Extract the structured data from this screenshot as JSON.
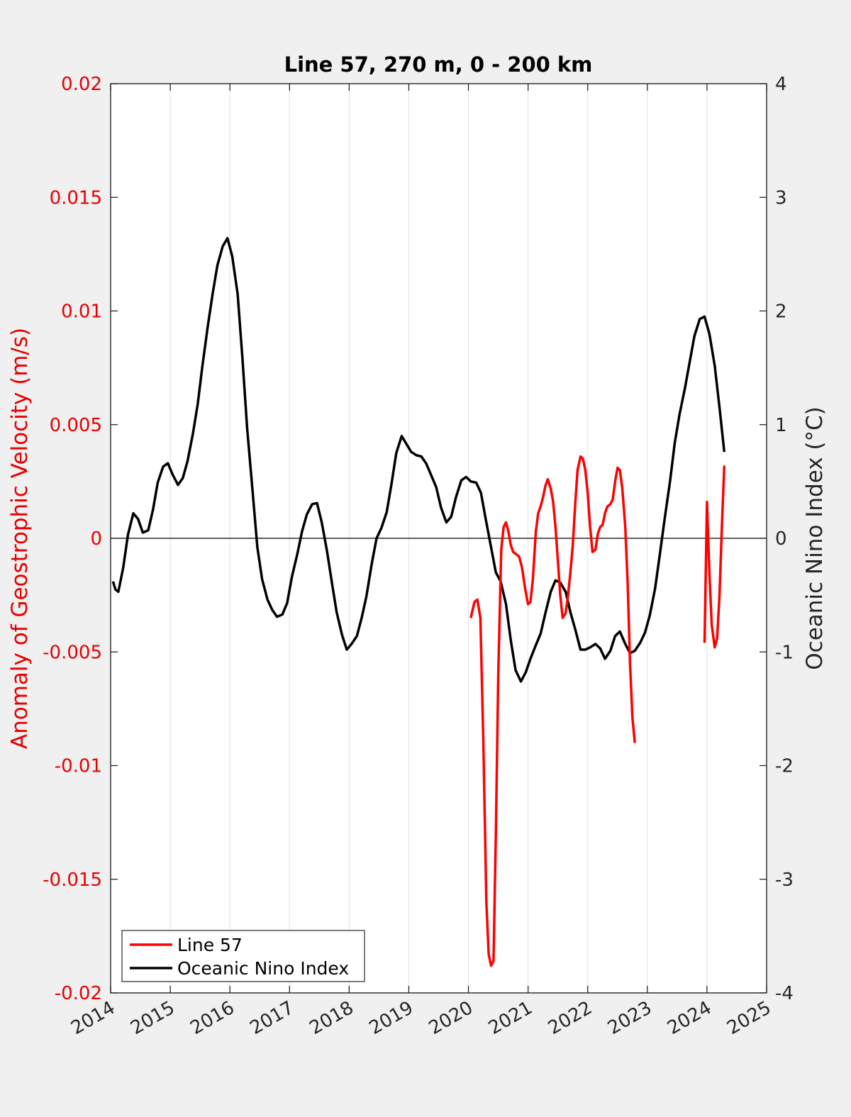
{
  "chart_data": {
    "type": "line",
    "title": "Line 57, 270 m, 0 - 200 km",
    "xlabel": "",
    "ylabel_left": "Anomaly of Geostrophic Velocity (m/s)",
    "ylabel_right": "Oceanic Nino Index (°C)",
    "xlim": [
      2014,
      2025
    ],
    "ylim_left": [
      -0.02,
      0.02
    ],
    "ylim_right": [
      -4,
      4
    ],
    "x_ticks": [
      "2014",
      "2015",
      "2016",
      "2017",
      "2018",
      "2019",
      "2020",
      "2021",
      "2022",
      "2023",
      "2024",
      "2025"
    ],
    "y_left_ticks": [
      "0.02",
      "0.015",
      "0.01",
      "0.005",
      "0",
      "-0.005",
      "-0.01",
      "-0.015",
      "-0.02"
    ],
    "y_right_ticks": [
      "4",
      "3",
      "2",
      "1",
      "0",
      "-1",
      "-2",
      "-3",
      "-4"
    ],
    "grid": "vertical",
    "zero_line": true,
    "legend_position": "bottom-left",
    "colors": {
      "left_axis": "#e80000",
      "line57": "#ff0000",
      "oni": "#000000",
      "background": "#f0f0f0",
      "plot_bg": "#ffffff",
      "grid": "#e3e3e3"
    },
    "series": [
      {
        "name": "Line 57",
        "axis": "left",
        "color": "#ff0000",
        "segments": [
          [
            [
              2020.04,
              -0.0035
            ],
            [
              2020.1,
              -0.0028
            ],
            [
              2020.15,
              -0.0027
            ],
            [
              2020.2,
              -0.0035
            ],
            [
              2020.25,
              -0.009
            ],
            [
              2020.3,
              -0.016
            ],
            [
              2020.34,
              -0.0183
            ],
            [
              2020.38,
              -0.0188
            ],
            [
              2020.42,
              -0.0186
            ],
            [
              2020.46,
              -0.013
            ],
            [
              2020.5,
              -0.006
            ],
            [
              2020.55,
              -0.0005
            ],
            [
              2020.59,
              0.0005
            ],
            [
              2020.63,
              0.0007
            ],
            [
              2020.67,
              0.0003
            ],
            [
              2020.71,
              -0.0003
            ],
            [
              2020.75,
              -0.0006
            ],
            [
              2020.8,
              -0.0007
            ],
            [
              2020.85,
              -0.0008
            ],
            [
              2020.9,
              -0.0013
            ],
            [
              2020.95,
              -0.0022
            ],
            [
              2021.0,
              -0.0029
            ],
            [
              2021.04,
              -0.0028
            ],
            [
              2021.08,
              -0.0018
            ],
            [
              2021.13,
              0.0003
            ],
            [
              2021.17,
              0.0011
            ],
            [
              2021.21,
              0.0014
            ],
            [
              2021.25,
              0.0018
            ],
            [
              2021.29,
              0.0023
            ],
            [
              2021.33,
              0.0026
            ],
            [
              2021.38,
              0.0022
            ],
            [
              2021.42,
              0.0016
            ],
            [
              2021.46,
              0.0005
            ],
            [
              2021.5,
              -0.001
            ],
            [
              2021.54,
              -0.0025
            ],
            [
              2021.58,
              -0.0035
            ],
            [
              2021.63,
              -0.0033
            ],
            [
              2021.67,
              -0.0025
            ],
            [
              2021.71,
              -0.0015
            ],
            [
              2021.75,
              -0.0003
            ],
            [
              2021.79,
              0.0015
            ],
            [
              2021.83,
              0.003
            ],
            [
              2021.88,
              0.0036
            ],
            [
              2021.92,
              0.0035
            ],
            [
              2021.96,
              0.003
            ],
            [
              2022.0,
              0.002
            ],
            [
              2022.04,
              0.0005
            ],
            [
              2022.08,
              -0.0006
            ],
            [
              2022.13,
              -0.0005
            ],
            [
              2022.17,
              0.0002
            ],
            [
              2022.21,
              0.0005
            ],
            [
              2022.25,
              0.0006
            ],
            [
              2022.29,
              0.0011
            ],
            [
              2022.33,
              0.0014
            ],
            [
              2022.38,
              0.0015
            ],
            [
              2022.42,
              0.0017
            ],
            [
              2022.46,
              0.0025
            ],
            [
              2022.5,
              0.0031
            ],
            [
              2022.54,
              0.003
            ],
            [
              2022.58,
              0.0022
            ],
            [
              2022.63,
              0.0005
            ],
            [
              2022.67,
              -0.002
            ],
            [
              2022.71,
              -0.0055
            ],
            [
              2022.75,
              -0.0079
            ],
            [
              2022.79,
              -0.009
            ]
          ],
          [
            [
              2023.96,
              -0.0046
            ],
            [
              2024.0,
              0.0016
            ],
            [
              2024.04,
              -0.0015
            ],
            [
              2024.08,
              -0.0038
            ],
            [
              2024.13,
              -0.0048
            ],
            [
              2024.17,
              -0.0044
            ],
            [
              2024.21,
              -0.0025
            ],
            [
              2024.25,
              0.0005
            ],
            [
              2024.29,
              0.0032
            ]
          ]
        ]
      },
      {
        "name": "Oceanic Nino Index",
        "axis": "right",
        "color": "#000000",
        "segments": [
          [
            [
              2014.04,
              -0.38
            ],
            [
              2014.08,
              -0.45
            ],
            [
              2014.13,
              -0.47
            ],
            [
              2014.21,
              -0.26
            ],
            [
              2014.29,
              0.03
            ],
            [
              2014.38,
              0.22
            ],
            [
              2014.46,
              0.17
            ],
            [
              2014.54,
              0.05
            ],
            [
              2014.63,
              0.07
            ],
            [
              2014.71,
              0.25
            ],
            [
              2014.79,
              0.49
            ],
            [
              2014.88,
              0.63
            ],
            [
              2014.96,
              0.66
            ],
            [
              2015.04,
              0.56
            ],
            [
              2015.13,
              0.47
            ],
            [
              2015.21,
              0.53
            ],
            [
              2015.29,
              0.68
            ],
            [
              2015.38,
              0.92
            ],
            [
              2015.46,
              1.18
            ],
            [
              2015.54,
              1.52
            ],
            [
              2015.63,
              1.87
            ],
            [
              2015.71,
              2.15
            ],
            [
              2015.79,
              2.4
            ],
            [
              2015.88,
              2.57
            ],
            [
              2015.96,
              2.64
            ],
            [
              2016.04,
              2.48
            ],
            [
              2016.13,
              2.15
            ],
            [
              2016.21,
              1.59
            ],
            [
              2016.29,
              0.96
            ],
            [
              2016.38,
              0.42
            ],
            [
              2016.46,
              -0.08
            ],
            [
              2016.54,
              -0.36
            ],
            [
              2016.63,
              -0.54
            ],
            [
              2016.71,
              -0.63
            ],
            [
              2016.79,
              -0.69
            ],
            [
              2016.88,
              -0.67
            ],
            [
              2016.96,
              -0.57
            ],
            [
              2017.04,
              -0.34
            ],
            [
              2017.13,
              -0.14
            ],
            [
              2017.21,
              0.06
            ],
            [
              2017.29,
              0.21
            ],
            [
              2017.38,
              0.3
            ],
            [
              2017.46,
              0.31
            ],
            [
              2017.54,
              0.14
            ],
            [
              2017.63,
              -0.12
            ],
            [
              2017.71,
              -0.39
            ],
            [
              2017.79,
              -0.65
            ],
            [
              2017.88,
              -0.85
            ],
            [
              2017.96,
              -0.98
            ],
            [
              2018.04,
              -0.93
            ],
            [
              2018.13,
              -0.86
            ],
            [
              2018.21,
              -0.7
            ],
            [
              2018.29,
              -0.51
            ],
            [
              2018.38,
              -0.22
            ],
            [
              2018.46,
              0.0
            ],
            [
              2018.54,
              0.09
            ],
            [
              2018.63,
              0.23
            ],
            [
              2018.71,
              0.48
            ],
            [
              2018.79,
              0.75
            ],
            [
              2018.88,
              0.9
            ],
            [
              2018.96,
              0.83
            ],
            [
              2019.04,
              0.76
            ],
            [
              2019.13,
              0.73
            ],
            [
              2019.21,
              0.72
            ],
            [
              2019.29,
              0.66
            ],
            [
              2019.38,
              0.55
            ],
            [
              2019.46,
              0.45
            ],
            [
              2019.54,
              0.27
            ],
            [
              2019.63,
              0.14
            ],
            [
              2019.71,
              0.19
            ],
            [
              2019.79,
              0.36
            ],
            [
              2019.88,
              0.51
            ],
            [
              2019.96,
              0.54
            ],
            [
              2020.04,
              0.5
            ],
            [
              2020.13,
              0.49
            ],
            [
              2020.21,
              0.4
            ],
            [
              2020.29,
              0.17
            ],
            [
              2020.38,
              -0.08
            ],
            [
              2020.46,
              -0.3
            ],
            [
              2020.54,
              -0.38
            ],
            [
              2020.63,
              -0.58
            ],
            [
              2020.71,
              -0.9
            ],
            [
              2020.79,
              -1.16
            ],
            [
              2020.88,
              -1.26
            ],
            [
              2020.96,
              -1.18
            ],
            [
              2021.04,
              -1.06
            ],
            [
              2021.13,
              -0.94
            ],
            [
              2021.21,
              -0.84
            ],
            [
              2021.29,
              -0.66
            ],
            [
              2021.38,
              -0.47
            ],
            [
              2021.46,
              -0.37
            ],
            [
              2021.54,
              -0.39
            ],
            [
              2021.63,
              -0.47
            ],
            [
              2021.71,
              -0.65
            ],
            [
              2021.79,
              -0.8
            ],
            [
              2021.88,
              -0.98
            ],
            [
              2021.96,
              -0.98
            ],
            [
              2022.04,
              -0.96
            ],
            [
              2022.13,
              -0.93
            ],
            [
              2022.21,
              -0.97
            ],
            [
              2022.29,
              -1.06
            ],
            [
              2022.38,
              -0.99
            ],
            [
              2022.46,
              -0.86
            ],
            [
              2022.54,
              -0.82
            ],
            [
              2022.63,
              -0.93
            ],
            [
              2022.71,
              -1.01
            ],
            [
              2022.79,
              -0.99
            ],
            [
              2022.88,
              -0.92
            ],
            [
              2022.96,
              -0.83
            ],
            [
              2023.04,
              -0.68
            ],
            [
              2023.13,
              -0.44
            ],
            [
              2023.21,
              -0.14
            ],
            [
              2023.29,
              0.17
            ],
            [
              2023.38,
              0.5
            ],
            [
              2023.46,
              0.84
            ],
            [
              2023.54,
              1.09
            ],
            [
              2023.63,
              1.32
            ],
            [
              2023.71,
              1.55
            ],
            [
              2023.79,
              1.78
            ],
            [
              2023.88,
              1.93
            ],
            [
              2023.96,
              1.95
            ],
            [
              2024.04,
              1.8
            ],
            [
              2024.13,
              1.52
            ],
            [
              2024.21,
              1.15
            ],
            [
              2024.29,
              0.76
            ]
          ]
        ]
      }
    ]
  }
}
